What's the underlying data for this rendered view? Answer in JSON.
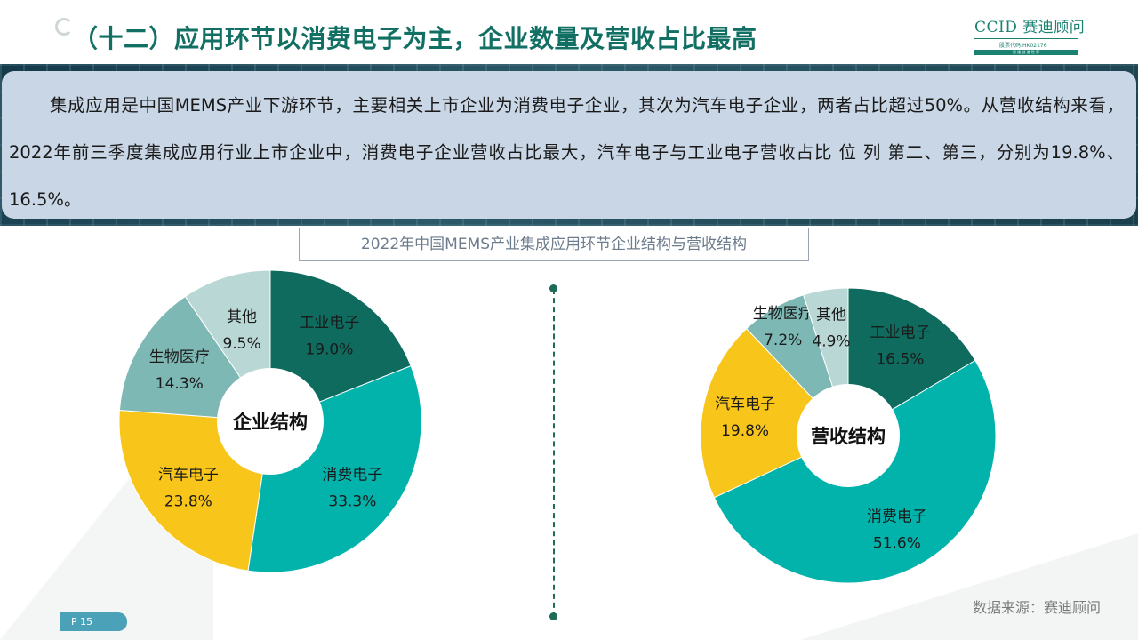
{
  "header": {
    "title": "（十二）应用环节以消费电子为主，企业数量及营收占比最高",
    "logo_main": "CCID 赛迪顾问",
    "logo_code": "股票代码:HK02176",
    "logo_tagline": "思 维 创 造 世 界"
  },
  "summary": {
    "text": "集成应用是中国MEMS产业下游环节，主要相关上市企业为消费电子企业，其次为汽车电子企业，两者占比超过50%。从营收结构来看，2022年前三季度集成应用行业上市企业中，消费电子企业营收占比最大，汽车电子与工业电子营收占比 位 列 第二、第三，分别为19.8%、16.5%。"
  },
  "chart_heading": "2022年中国MEMS产业集成应用环节企业结构与营收结构",
  "chart_data": [
    {
      "type": "pie",
      "center_label": "企业结构",
      "slices": [
        {
          "name": "工业电子",
          "value": 19.0,
          "label": "19.0%",
          "color": "#0e6b5e"
        },
        {
          "name": "消费电子",
          "value": 33.3,
          "label": "33.3%",
          "color": "#02b3ac"
        },
        {
          "name": "汽车电子",
          "value": 23.8,
          "label": "23.8%",
          "color": "#f8c51a"
        },
        {
          "name": "生物医疗",
          "value": 14.3,
          "label": "14.3%",
          "color": "#7eb8b5"
        },
        {
          "name": "其他",
          "value": 9.5,
          "label": "9.5%",
          "color": "#b9d7d5"
        }
      ]
    },
    {
      "type": "pie",
      "center_label": "营收结构",
      "slices": [
        {
          "name": "工业电子",
          "value": 16.5,
          "label": "16.5%",
          "color": "#0e6b5e"
        },
        {
          "name": "消费电子",
          "value": 51.6,
          "label": "51.6%",
          "color": "#02b3ac"
        },
        {
          "name": "汽车电子",
          "value": 19.8,
          "label": "19.8%",
          "color": "#f8c51a"
        },
        {
          "name": "生物医疗",
          "value": 7.2,
          "label": "7.2%",
          "color": "#7eb8b5"
        },
        {
          "name": "其他",
          "value": 4.9,
          "label": "4.9%",
          "color": "#b9d7d5"
        }
      ]
    }
  ],
  "footer": {
    "source": "数据来源：赛迪顾问",
    "page": "P 15"
  }
}
